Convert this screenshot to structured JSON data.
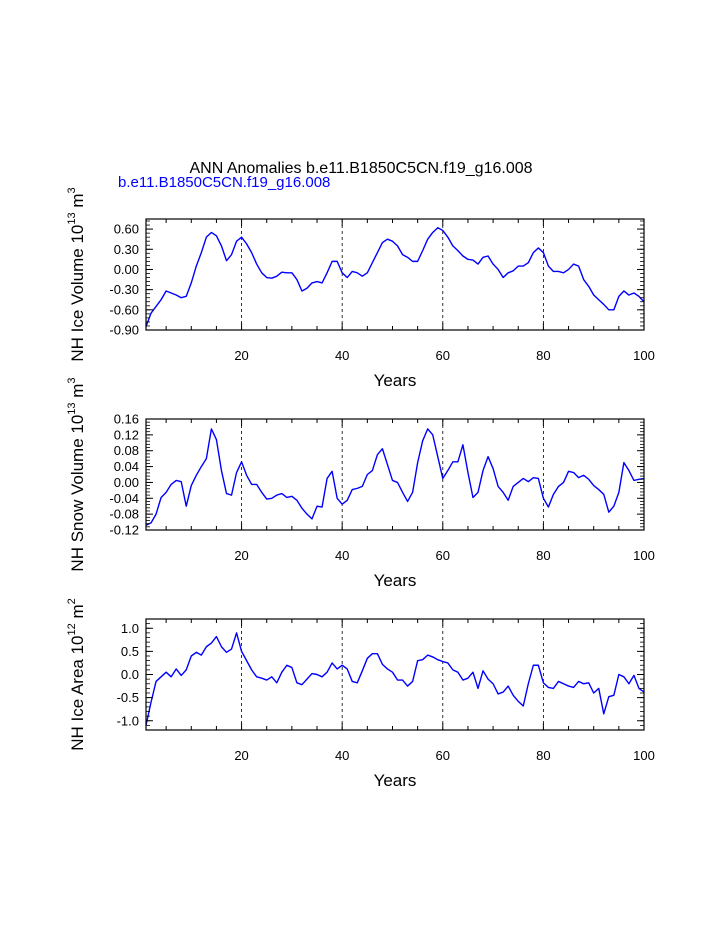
{
  "colors": {
    "series": "#0000ff",
    "axis": "#000000",
    "subtitle": "#0000ff"
  },
  "title": "ANN Anomalies b.e11.B1850C5CN.f19_g16.008",
  "subtitle": "b.e11.B1850C5CN.f19_g16.008",
  "chart_data": [
    {
      "type": "line",
      "id": "ice-volume",
      "ylabel": {
        "base": "NH Ice Volume 10",
        "exp1": "13",
        "mid": " m",
        "exp2": "3"
      },
      "xlabel": "Years",
      "xlim": [
        1,
        100
      ],
      "ylim": [
        -0.9,
        0.75
      ],
      "xticks": [
        "20",
        "40",
        "60",
        "80",
        "100"
      ],
      "yticks": [
        "0.60",
        "0.30",
        "0.00",
        "-0.30",
        "-0.60",
        "-0.90"
      ],
      "ytick_values": [
        0.6,
        0.3,
        0.0,
        -0.3,
        -0.6,
        -0.9
      ],
      "series": [
        {
          "name": "NH Ice Volume",
          "values": [
            -0.85,
            -0.65,
            -0.55,
            -0.45,
            -0.32,
            -0.35,
            -0.38,
            -0.42,
            -0.4,
            -0.2,
            0.05,
            0.25,
            0.48,
            0.55,
            0.5,
            0.35,
            0.13,
            0.22,
            0.42,
            0.48,
            0.38,
            0.25,
            0.08,
            -0.05,
            -0.12,
            -0.13,
            -0.1,
            -0.04,
            -0.05,
            -0.05,
            -0.15,
            -0.32,
            -0.28,
            -0.2,
            -0.18,
            -0.2,
            -0.05,
            0.12,
            0.12,
            -0.05,
            -0.12,
            -0.03,
            -0.05,
            -0.1,
            -0.05,
            0.1,
            0.25,
            0.4,
            0.45,
            0.42,
            0.35,
            0.22,
            0.18,
            0.12,
            0.12,
            0.28,
            0.45,
            0.55,
            0.62,
            0.58,
            0.48,
            0.35,
            0.28,
            0.2,
            0.15,
            0.14,
            0.08,
            0.18,
            0.2,
            0.08,
            0.0,
            -0.12,
            -0.05,
            -0.02,
            0.05,
            0.05,
            0.1,
            0.25,
            0.32,
            0.25,
            0.05,
            -0.03,
            -0.03,
            -0.05,
            0.0,
            0.08,
            0.05,
            -0.15,
            -0.25,
            -0.38,
            -0.45,
            -0.52,
            -0.6,
            -0.6,
            -0.4,
            -0.32,
            -0.38,
            -0.35,
            -0.4,
            -0.48
          ]
        }
      ]
    },
    {
      "type": "line",
      "id": "snow-volume",
      "ylabel": {
        "base": "NH Snow Volume 10",
        "exp1": "13",
        "mid": " m",
        "exp2": "3"
      },
      "xlabel": "Years",
      "xlim": [
        1,
        100
      ],
      "ylim": [
        -0.12,
        0.16
      ],
      "xticks": [
        "20",
        "40",
        "60",
        "80",
        "100"
      ],
      "yticks": [
        "0.16",
        "0.12",
        "0.08",
        "0.04",
        "0.00",
        "-0.04",
        "-0.08",
        "-0.12"
      ],
      "ytick_values": [
        0.16,
        0.12,
        0.08,
        0.04,
        0.0,
        -0.04,
        -0.08,
        -0.12
      ],
      "series": [
        {
          "name": "NH Snow Volume",
          "values": [
            -0.108,
            -0.102,
            -0.08,
            -0.038,
            -0.025,
            -0.005,
            0.005,
            0.002,
            -0.06,
            -0.008,
            0.018,
            0.04,
            0.06,
            0.135,
            0.108,
            0.03,
            -0.028,
            -0.032,
            0.025,
            0.052,
            0.018,
            -0.005,
            -0.005,
            -0.025,
            -0.042,
            -0.04,
            -0.032,
            -0.028,
            -0.038,
            -0.035,
            -0.045,
            -0.065,
            -0.08,
            -0.092,
            -0.06,
            -0.062,
            0.01,
            0.028,
            -0.04,
            -0.055,
            -0.045,
            -0.018,
            -0.015,
            -0.01,
            0.02,
            0.03,
            0.07,
            0.085,
            0.045,
            0.005,
            0.0,
            -0.025,
            -0.048,
            -0.025,
            0.05,
            0.105,
            0.135,
            0.12,
            0.065,
            0.01,
            0.03,
            0.052,
            0.052,
            0.095,
            0.025,
            -0.038,
            -0.025,
            0.03,
            0.065,
            0.035,
            -0.01,
            -0.025,
            -0.045,
            -0.01,
            0.0,
            0.01,
            0.002,
            0.012,
            0.01,
            -0.04,
            -0.062,
            -0.03,
            -0.01,
            0.0,
            0.028,
            0.025,
            0.012,
            0.018,
            0.008,
            -0.008,
            -0.018,
            -0.03,
            -0.075,
            -0.06,
            -0.025,
            0.05,
            0.03,
            0.005,
            0.008,
            0.01
          ]
        }
      ]
    },
    {
      "type": "line",
      "id": "ice-area",
      "ylabel": {
        "base": "NH Ice Area 10",
        "exp1": "12",
        "mid": " m",
        "exp2": "2"
      },
      "xlabel": "Years",
      "xlim": [
        1,
        100
      ],
      "ylim": [
        -1.2,
        1.2
      ],
      "xticks": [
        "20",
        "40",
        "60",
        "80",
        "100"
      ],
      "yticks": [
        "1.0",
        "0.5",
        "0.0",
        "-0.5",
        "-1.0"
      ],
      "ytick_values": [
        1.0,
        0.5,
        0.0,
        -0.5,
        -1.0
      ],
      "series": [
        {
          "name": "NH Ice Area",
          "values": [
            -1.1,
            -0.6,
            -0.15,
            -0.05,
            0.05,
            -0.05,
            0.12,
            -0.02,
            0.1,
            0.4,
            0.48,
            0.42,
            0.6,
            0.68,
            0.82,
            0.6,
            0.48,
            0.55,
            0.9,
            0.5,
            0.3,
            0.1,
            -0.05,
            -0.08,
            -0.12,
            -0.05,
            -0.18,
            0.05,
            0.2,
            0.15,
            -0.18,
            -0.22,
            -0.1,
            0.02,
            0.0,
            -0.05,
            0.05,
            0.25,
            0.12,
            0.2,
            0.12,
            -0.15,
            -0.18,
            0.08,
            0.35,
            0.45,
            0.45,
            0.22,
            0.12,
            0.05,
            -0.12,
            -0.12,
            -0.25,
            -0.15,
            0.3,
            0.32,
            0.42,
            0.38,
            0.32,
            0.28,
            0.25,
            0.1,
            0.05,
            -0.12,
            -0.08,
            0.05,
            -0.3,
            0.08,
            -0.1,
            -0.2,
            -0.42,
            -0.38,
            -0.25,
            -0.45,
            -0.58,
            -0.68,
            -0.2,
            0.2,
            0.2,
            -0.18,
            -0.28,
            -0.3,
            -0.15,
            -0.2,
            -0.25,
            -0.28,
            -0.15,
            -0.2,
            -0.18,
            -0.4,
            -0.3,
            -0.85,
            -0.48,
            -0.45,
            0.0,
            -0.05,
            -0.2,
            -0.02,
            -0.3,
            -0.38
          ]
        }
      ]
    }
  ]
}
